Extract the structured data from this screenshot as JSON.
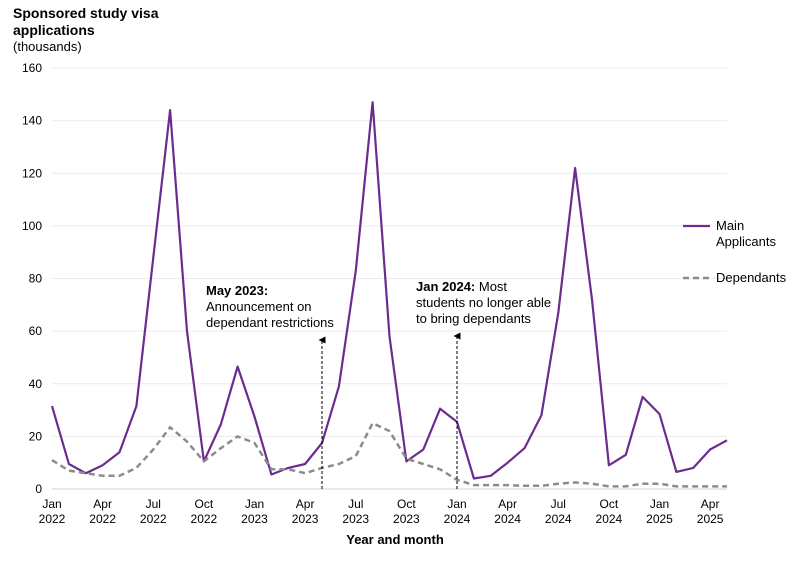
{
  "chart_data": {
    "type": "line",
    "title": "Sponsored study visa applications",
    "unit_label": "(thousands)",
    "xlabel": "Year and month",
    "ylabel": "",
    "ylim": [
      0,
      160
    ],
    "yticks": [
      0,
      20,
      40,
      60,
      80,
      100,
      120,
      140,
      160
    ],
    "x": [
      "Jan 2022",
      "Feb 2022",
      "Mar 2022",
      "Apr 2022",
      "May 2022",
      "Jun 2022",
      "Jul 2022",
      "Aug 2022",
      "Sep 2022",
      "Oct 2022",
      "Nov 2022",
      "Dec 2022",
      "Jan 2023",
      "Feb 2023",
      "Mar 2023",
      "Apr 2023",
      "May 2023",
      "Jun 2023",
      "Jul 2023",
      "Aug 2023",
      "Sep 2023",
      "Oct 2023",
      "Nov 2023",
      "Dec 2023",
      "Jan 2024",
      "Feb 2024",
      "Mar 2024",
      "Apr 2024",
      "May 2024",
      "Jun 2024",
      "Jul 2024",
      "Aug 2024",
      "Sep 2024",
      "Oct 2024",
      "Nov 2024",
      "Dec 2024",
      "Jan 2025",
      "Feb 2025",
      "Mar 2025",
      "Apr 2025",
      "May 2025"
    ],
    "xtick_labels": [
      {
        "month": "Jan",
        "year": "2022",
        "index": 0
      },
      {
        "month": "Apr",
        "year": "2022",
        "index": 3
      },
      {
        "month": "Jul",
        "year": "2022",
        "index": 6
      },
      {
        "month": "Oct",
        "year": "2022",
        "index": 9
      },
      {
        "month": "Jan",
        "year": "2023",
        "index": 12
      },
      {
        "month": "Apr",
        "year": "2023",
        "index": 15
      },
      {
        "month": "Jul",
        "year": "2023",
        "index": 18
      },
      {
        "month": "Oct",
        "year": "2023",
        "index": 21
      },
      {
        "month": "Jan",
        "year": "2024",
        "index": 24
      },
      {
        "month": "Apr",
        "year": "2024",
        "index": 27
      },
      {
        "month": "Jul",
        "year": "2024",
        "index": 30
      },
      {
        "month": "Oct",
        "year": "2024",
        "index": 33
      },
      {
        "month": "Jan",
        "year": "2025",
        "index": 36
      },
      {
        "month": "Apr",
        "year": "2025",
        "index": 39
      }
    ],
    "series": [
      {
        "name": "Main Applicants",
        "color": "#6b2c8f",
        "style": "solid",
        "values": [
          31.5,
          9.5,
          6.0,
          9.0,
          14.0,
          31.5,
          88.0,
          144.0,
          60.0,
          10.5,
          24.5,
          46.5,
          27.5,
          5.5,
          8.0,
          9.5,
          17.5,
          39.0,
          83.0,
          147.0,
          58.0,
          10.5,
          15.0,
          30.5,
          25.5,
          4.0,
          5.0,
          10.0,
          15.5,
          28.0,
          67.0,
          122.0,
          72.0,
          9.0,
          13.0,
          35.0,
          28.5,
          6.5,
          8.0,
          15.0,
          18.5
        ]
      },
      {
        "name": "Dependants",
        "color": "#8c8c8c",
        "style": "dashed",
        "values": [
          11.0,
          7.0,
          6.0,
          5.0,
          5.0,
          8.0,
          15.0,
          23.5,
          18.0,
          10.5,
          15.5,
          20.0,
          17.5,
          7.5,
          7.5,
          6.0,
          8.0,
          9.5,
          12.5,
          25.0,
          22.0,
          11.5,
          9.5,
          7.5,
          3.5,
          1.5,
          1.5,
          1.5,
          1.2,
          1.2,
          2.0,
          2.5,
          2.0,
          1.0,
          1.0,
          2.0,
          2.0,
          1.0,
          1.0,
          1.0,
          1.0
        ]
      }
    ],
    "annotations": [
      {
        "bold": "May 2023:",
        "text": [
          "Announcement on",
          "dependant restrictions"
        ],
        "x_index": 16
      },
      {
        "bold": "Jan 2024:",
        "text": [
          "Most",
          "students no longer able",
          "to bring dependants"
        ],
        "x_index": 24
      }
    ],
    "legend_position": "right",
    "grid": true
  }
}
